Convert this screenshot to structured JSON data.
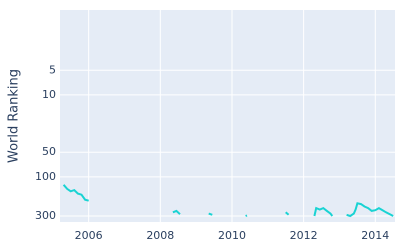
{
  "chart_data": {
    "type": "line",
    "y_label": "World Ranking",
    "x": [
      2005.3,
      2005.4,
      2005.5,
      2005.6,
      2005.7,
      2005.8,
      2005.9,
      2006.0,
      2006.05,
      2008.35,
      2008.45,
      2008.55,
      2008.6,
      2009.35,
      2009.45,
      2009.5,
      2010.38,
      2010.42,
      2010.45,
      2011.5,
      2011.58,
      2011.6,
      2012.3,
      2012.35,
      2012.45,
      2012.55,
      2012.65,
      2012.75,
      2012.8,
      2012.85,
      2013.2,
      2013.3,
      2013.4,
      2013.45,
      2013.5,
      2013.6,
      2013.7,
      2013.8,
      2013.9,
      2014.0,
      2014.1,
      2014.3,
      2014.5
    ],
    "values": [
      125,
      140,
      150,
      145,
      160,
      165,
      190,
      195,
      null,
      270,
      260,
      285,
      null,
      280,
      290,
      null,
      300,
      295,
      null,
      270,
      290,
      null,
      300,
      240,
      250,
      240,
      260,
      280,
      300,
      null,
      290,
      300,
      280,
      250,
      210,
      215,
      230,
      240,
      260,
      255,
      240,
      270,
      300
    ],
    "color": "#19d3d3",
    "xlim": [
      2005.2,
      2014.55
    ],
    "xticks": [
      2006,
      2008,
      2010,
      2012,
      2014
    ],
    "ylim": [
      0.92,
      355
    ],
    "yticks": [
      5,
      10,
      50,
      100,
      300
    ],
    "log_y": true,
    "y_reversed": true,
    "grid": true
  }
}
